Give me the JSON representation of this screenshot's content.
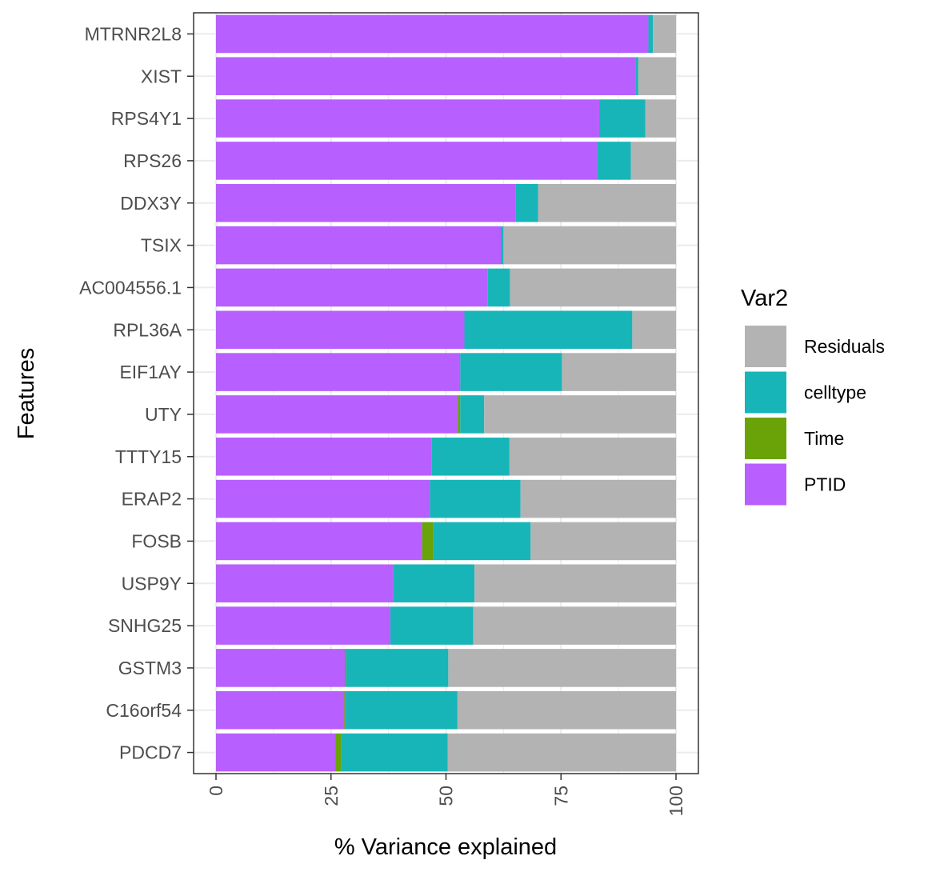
{
  "chart_data": {
    "type": "bar",
    "orientation": "horizontal",
    "stacked": true,
    "xlabel": "% Variance explained",
    "ylabel": "Features",
    "xlim": [
      0,
      100
    ],
    "xticks": [
      0,
      25,
      50,
      75,
      100
    ],
    "grid": true,
    "legend": {
      "title": "Var2",
      "position": "right",
      "entries": [
        "Residuals",
        "celltype",
        "Time",
        "PTID"
      ]
    },
    "colors": {
      "PTID": "#b75fff",
      "Time": "#6aa307",
      "celltype": "#17b5b8",
      "Residuals": "#b3b3b3"
    },
    "categories": [
      "MTRNR2L8",
      "XIST",
      "RPS4Y1",
      "RPS26",
      "DDX3Y",
      "TSIX",
      "AC004556.1",
      "RPL36A",
      "EIF1AY",
      "UTY",
      "TTTY15",
      "ERAP2",
      "FOSB",
      "USP9Y",
      "SNHG25",
      "GSTM3",
      "C16orf54",
      "PDCD7"
    ],
    "series": [
      {
        "name": "PTID",
        "values": [
          94.0,
          91.2,
          83.3,
          82.8,
          65.1,
          62.0,
          59.1,
          54.0,
          53.1,
          52.6,
          46.9,
          46.5,
          44.8,
          38.5,
          37.9,
          28.0,
          27.9,
          26.0
        ]
      },
      {
        "name": "Time",
        "values": [
          0.0,
          0.0,
          0.0,
          0.0,
          0.0,
          0.0,
          0.0,
          0.0,
          0.0,
          0.5,
          0.0,
          0.0,
          2.4,
          0.0,
          0.0,
          0.3,
          0.3,
          1.2
        ]
      },
      {
        "name": "celltype",
        "values": [
          1.0,
          0.6,
          10.0,
          7.4,
          4.9,
          0.5,
          4.8,
          36.5,
          22.1,
          5.2,
          16.9,
          19.7,
          21.2,
          17.7,
          18.0,
          22.2,
          24.3,
          23.2
        ]
      },
      {
        "name": "Residuals",
        "values": [
          5.0,
          8.2,
          6.7,
          9.8,
          30.0,
          37.5,
          36.1,
          9.5,
          24.8,
          41.7,
          36.2,
          33.8,
          31.6,
          43.8,
          44.1,
          49.5,
          47.5,
          49.6
        ]
      }
    ]
  }
}
